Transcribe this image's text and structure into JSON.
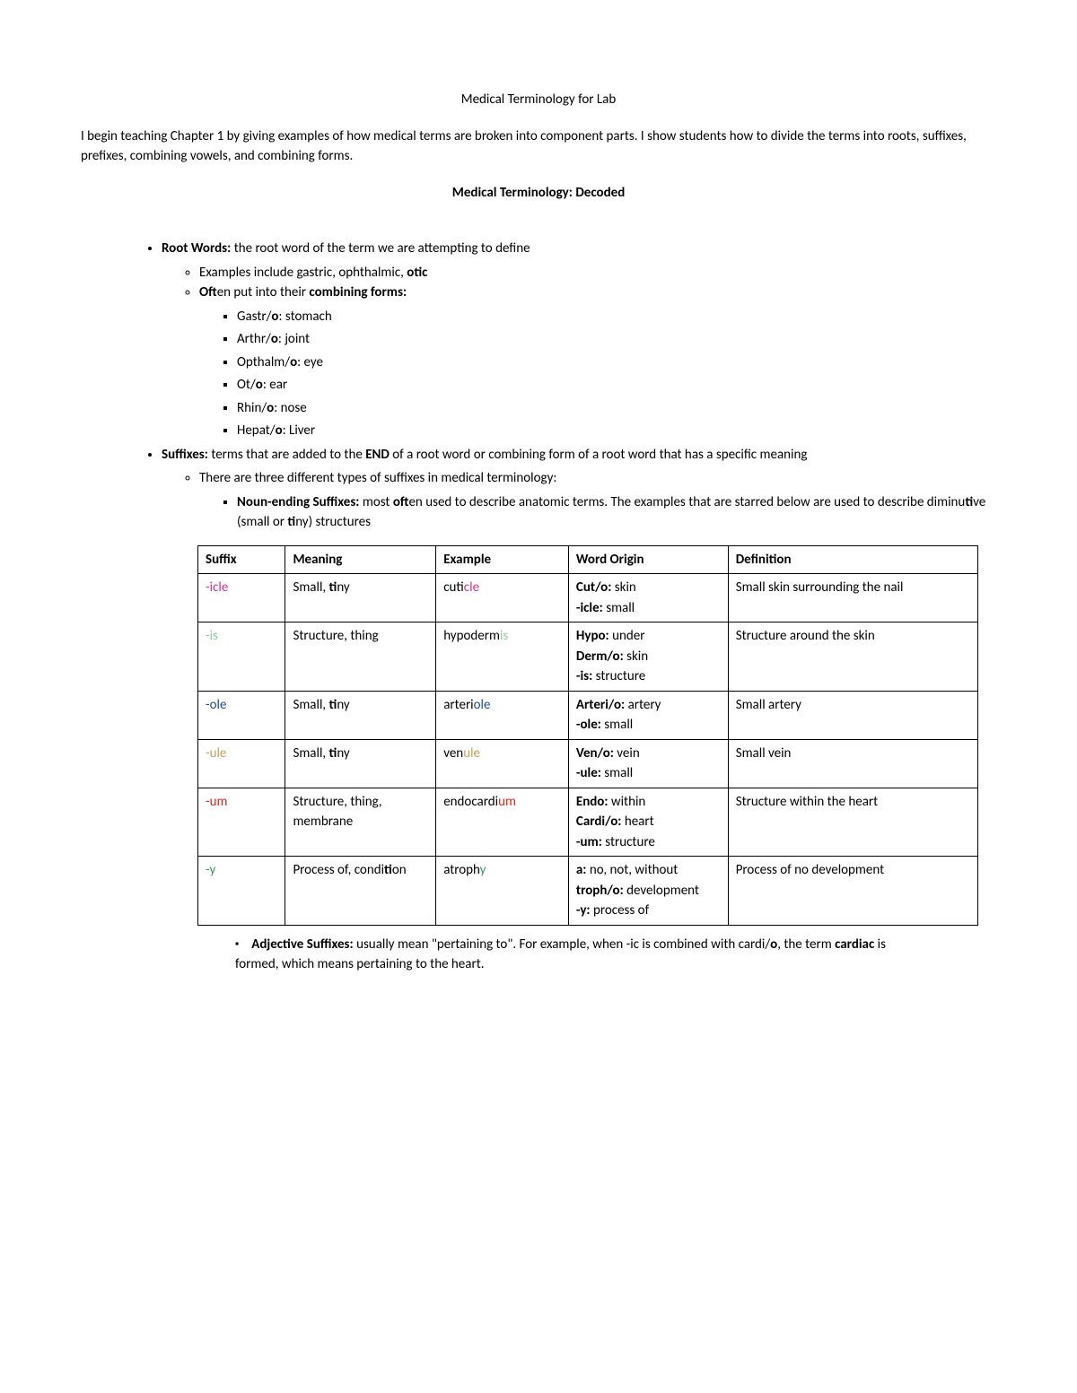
{
  "title": "Medical Terminology for Lab",
  "intro": "I begin teaching Chapter 1 by giving examples of how medical terms are broken into component parts. I show students how to divide the terms into roots, suffixes, prefixes, combining vowels, and combining forms.",
  "subtitle": "Medical Terminology: Decoded",
  "root": {
    "label": "Root Words:",
    "desc": " the root word of the term we are attempting to define",
    "ex_prefix": "Examples include gastric, ophthalmic, ",
    "ex_bold": "otic",
    "combining_prefix": "Oft",
    "combining_rest": "en put into their ",
    "combining_bold": "combining forms:",
    "items": [
      {
        "a": "Gastr/",
        "b": "o",
        "c": ": stomach"
      },
      {
        "a": "Arthr/",
        "b": "o",
        "c": ": joint"
      },
      {
        "a": "Opthalm/",
        "b": "o",
        "c": ": eye"
      },
      {
        "a": "Ot/",
        "b": "o",
        "c": ": ear"
      },
      {
        "a": "Rhin/",
        "b": "o",
        "c": ": nose"
      },
      {
        "a": "Hepat/",
        "b": "o",
        "c": ": Liver"
      }
    ]
  },
  "suffix_section": {
    "label": "Suffixes:",
    "desc_a": " terms that are added to the ",
    "desc_bold": "END",
    "desc_b": " of a root word or combining form of a root word that has a specific meaning",
    "types_intro": "There are three different types of suffixes in medical terminology:",
    "noun_label": "Noun-ending Suffixes:",
    "noun_desc_a": " most ",
    "noun_desc_bold": "oft",
    "noun_desc_b": "en used to describe anatomic terms. The examples that are starred below are used to describe diminu",
    "noun_desc_bold2": "ti",
    "noun_desc_c": "ve (small or ",
    "noun_desc_bold3": "ti",
    "noun_desc_d": "ny) structures"
  },
  "table": {
    "headers": [
      "Suffix",
      "Meaning",
      "Example",
      "Word Origin",
      "Definition"
    ],
    "rows": [
      {
        "suffix": "-icle",
        "suffix_color": "#d63384",
        "meaning_a": "Small, ",
        "meaning_bold": "ti",
        "meaning_b": "ny",
        "ex_a": "cut",
        "ex_color_txt": "icle",
        "ex_color": "#d63384",
        "origin": "Cut/o: skin\n-icle: small",
        "def": "Small skin surrounding the nail"
      },
      {
        "suffix": "-is",
        "suffix_color": "#8fd19e",
        "meaning_a": "Structure, thing",
        "meaning_bold": "",
        "meaning_b": "",
        "ex_a": "hypoderm",
        "ex_color_txt": "is",
        "ex_color": "#8fd19e",
        "origin": "Hypo: under\nDerm/o: skin\n-is: structure",
        "def": "Structure around the skin"
      },
      {
        "suffix": "-ole",
        "suffix_color": "#1f4e9c",
        "meaning_a": "Small, ",
        "meaning_bold": "ti",
        "meaning_b": "ny",
        "ex_a": "arteri",
        "ex_color_txt": "ole",
        "ex_color": "#1f4e9c",
        "origin": "Arteri/o: artery\n-ole: small",
        "def": "Small artery"
      },
      {
        "suffix": "-ule",
        "suffix_color": "#c9a05c",
        "meaning_a": "Small, ",
        "meaning_bold": "ti",
        "meaning_b": "ny",
        "ex_a": "ven",
        "ex_color_txt": "ule",
        "ex_color": "#c9a05c",
        "origin": "Ven/o: vein\n-ule: small",
        "def": "Small vein"
      },
      {
        "suffix": "-um",
        "suffix_color": "#d9261c",
        "meaning_a": "Structure, thing, membrane",
        "meaning_bold": "",
        "meaning_b": "",
        "ex_a": "endocardi",
        "ex_color_txt": "um",
        "ex_color": "#d9261c",
        "origin": "Endo: within\nCardi/o: heart\n-um: structure",
        "def": "Structure within the heart"
      },
      {
        "suffix": "-y",
        "suffix_color": "#2e9e5b",
        "meaning_a": "Process of, condi",
        "meaning_bold": "ti",
        "meaning_b": "on",
        "ex_a": "atroph",
        "ex_color_txt": "y",
        "ex_color": "#2e9e5b",
        "origin": "a: no, not, without\ntroph/o: development\n-y: process of",
        "def": "Process of no development"
      }
    ]
  },
  "adjective": {
    "label": "Adjective Suffixes:",
    "desc_a": " usually mean \"pertaining to\".  For example, when -ic is combined with cardi/",
    "desc_bold_o": "o",
    "desc_b": ", the term ",
    "desc_bold_cardiac": "cardiac",
    "desc_c": " is formed, which means pertaining to the heart."
  }
}
